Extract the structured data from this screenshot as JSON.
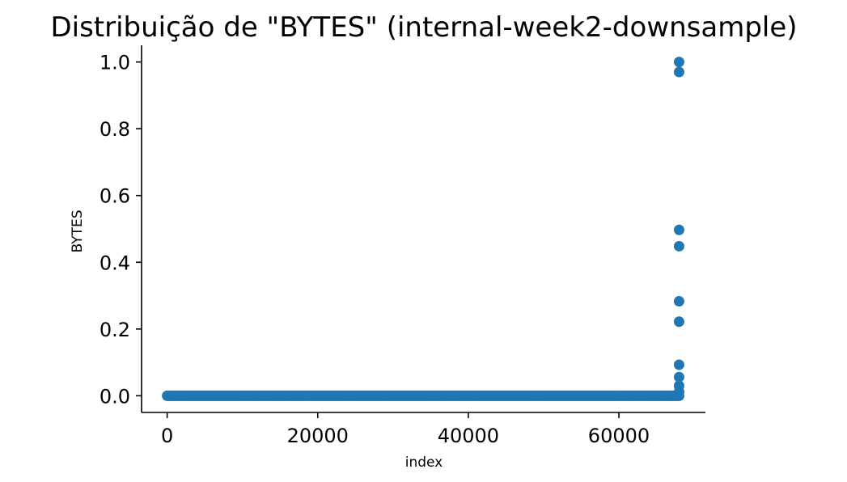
{
  "chart_data": {
    "type": "scatter",
    "title": "Distribuição de \"BYTES\" (internal-week2-downsample)",
    "xlabel": "index",
    "ylabel": "BYTES",
    "xlim": [
      -3400,
      71500
    ],
    "ylim": [
      -0.05,
      1.05
    ],
    "xticks": [
      0,
      20000,
      40000,
      60000
    ],
    "xtick_labels": [
      "0",
      "20000",
      "40000",
      "60000"
    ],
    "yticks": [
      0.0,
      0.2,
      0.4,
      0.6,
      0.8,
      1.0
    ],
    "ytick_labels": [
      "0.0",
      "0.2",
      "0.4",
      "0.6",
      "0.8",
      "1.0"
    ],
    "grid": false,
    "color": "#1f77b4",
    "series": [
      {
        "points_x_range": [
          0,
          68000
        ],
        "baseline_value": 0.0,
        "outliers": [
          {
            "x": 68000,
            "y": 1.0
          },
          {
            "x": 68000,
            "y": 0.97
          },
          {
            "x": 68000,
            "y": 0.497
          },
          {
            "x": 68000,
            "y": 0.448
          },
          {
            "x": 68000,
            "y": 0.283
          },
          {
            "x": 68000,
            "y": 0.222
          },
          {
            "x": 68000,
            "y": 0.093
          },
          {
            "x": 68000,
            "y": 0.056
          },
          {
            "x": 68000,
            "y": 0.03
          },
          {
            "x": 68000,
            "y": 0.012
          }
        ]
      }
    ]
  }
}
